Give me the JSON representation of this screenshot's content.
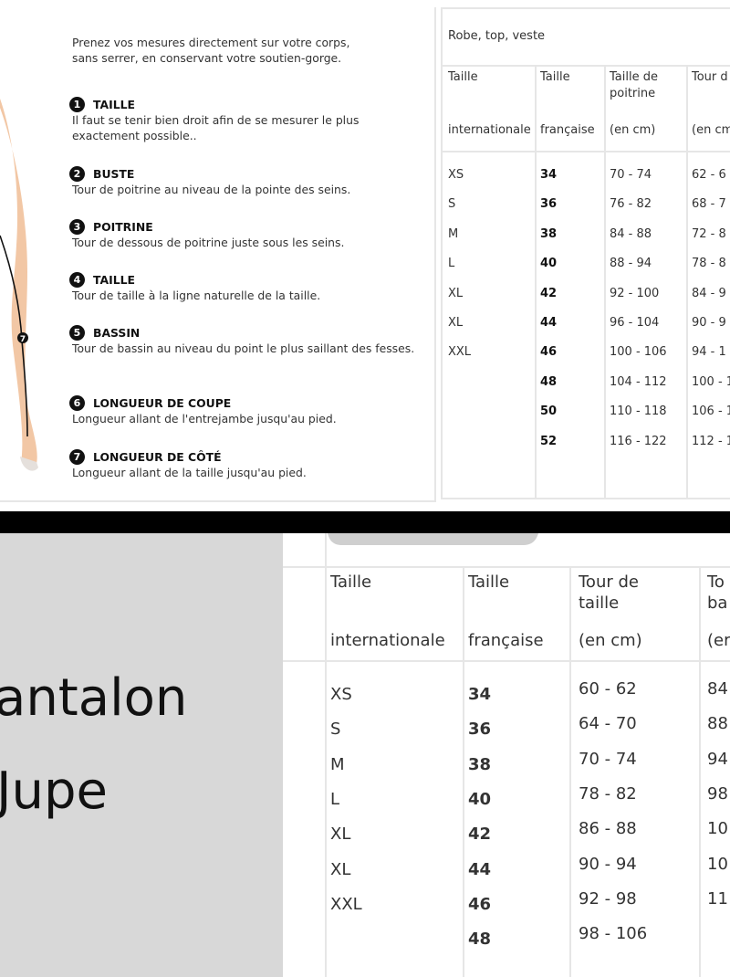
{
  "guide": {
    "intro": [
      "Prenez vos mesures directement sur votre corps,",
      "sans serrer, en conservant votre soutien-gorge."
    ],
    "items": [
      {
        "num": "1",
        "title": "TAILLE",
        "text": "Il faut se tenir bien droit afin de se mesurer le plus exactement possible.."
      },
      {
        "num": "2",
        "title": "BUSTE",
        "text": "Tour de poitrine au niveau de la pointe des seins."
      },
      {
        "num": "3",
        "title": "POITRINE",
        "text": "Tour de dessous de poitrine juste sous les seins."
      },
      {
        "num": "4",
        "title": "TAILLE",
        "text": "Tour de taille à la ligne naturelle de la taille."
      },
      {
        "num": "5",
        "title": "BASSIN",
        "text": "Tour de bassin au niveau du point le plus saillant des fesses."
      },
      {
        "num": "6",
        "title": "LONGUEUR DE COUPE",
        "text": "Longueur allant de l'entrejambe jusqu'au pied."
      },
      {
        "num": "7",
        "title": "LONGUEUR DE CÔTÉ",
        "text": "Longueur allant de la taille jusqu'au pied."
      }
    ],
    "figure_marker": "7",
    "skin_color": "#f2c7a5"
  },
  "table_top": {
    "title": "Robe, top, veste",
    "headers": [
      {
        "top": "Taille",
        "bottom": "internationale"
      },
      {
        "top": "Taille",
        "bottom": "française"
      },
      {
        "top": "Taille de poitrine",
        "bottom": "(en cm)"
      },
      {
        "top": "Tour d taille",
        "bottom": "(en cm"
      }
    ],
    "rows": [
      [
        "XS",
        "34",
        "70 - 74",
        "62 - 6"
      ],
      [
        "S",
        "36",
        "76 - 82",
        "68 - 7"
      ],
      [
        "M",
        "38",
        "84 - 88",
        "72 - 8"
      ],
      [
        "L",
        "40",
        "88 - 94",
        "78 - 8"
      ],
      [
        "XL",
        "42",
        "92 - 100",
        "84 - 9"
      ],
      [
        "XL",
        "44",
        "96 - 104",
        "90 - 9"
      ],
      [
        "XXL",
        "46",
        "100 - 106",
        "94 - 1"
      ],
      [
        "",
        "48",
        "104 - 112",
        "100 - 1"
      ],
      [
        "",
        "50",
        "110 - 118",
        "106 - 1"
      ],
      [
        "",
        "52",
        "116 - 122",
        "112 - 1"
      ]
    ]
  },
  "bottom_panel": {
    "labels": [
      "antalon",
      "Jupe"
    ],
    "bg_color": "#d8d8d8"
  },
  "table_bottom": {
    "headers": [
      {
        "top": "Taille",
        "bottom": "internationale"
      },
      {
        "top": "Taille",
        "bottom": "française"
      },
      {
        "top": "Tour de taille",
        "bottom": "(en cm)"
      },
      {
        "top": "To ba",
        "bottom": "(er"
      }
    ],
    "rows": [
      [
        "XS",
        "34",
        "60 - 62",
        "84"
      ],
      [
        "S",
        "36",
        "64 - 70",
        "88"
      ],
      [
        "M",
        "38",
        "70 - 74",
        "94"
      ],
      [
        "L",
        "40",
        "78 - 82",
        "98"
      ],
      [
        "XL",
        "42",
        "86 - 88",
        "10"
      ],
      [
        "XL",
        "44",
        "90 - 94",
        "10"
      ],
      [
        "XXL",
        "46",
        "92 - 98",
        "11"
      ],
      [
        "",
        "48",
        "98 - 106",
        ""
      ]
    ]
  }
}
